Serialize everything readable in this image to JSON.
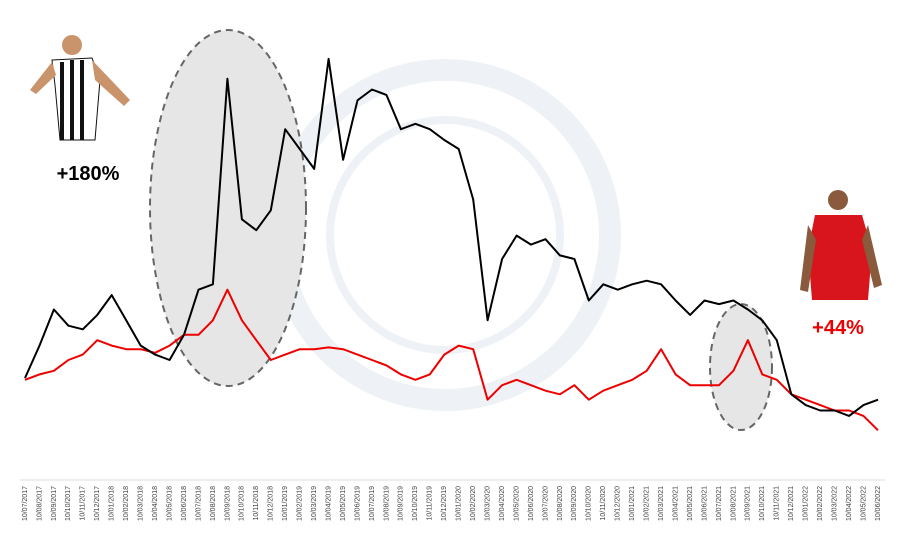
{
  "chart_data": {
    "type": "line",
    "categories": [
      "10/07/2017",
      "10/08/2017",
      "10/09/2017",
      "10/10/2017",
      "10/11/2017",
      "10/12/2017",
      "10/01/2018",
      "10/02/2018",
      "10/03/2018",
      "10/04/2018",
      "10/05/2018",
      "10/06/2018",
      "10/07/2018",
      "10/08/2018",
      "10/09/2018",
      "10/10/2018",
      "10/11/2018",
      "10/12/2018",
      "10/01/2019",
      "10/02/2019",
      "10/03/2019",
      "10/04/2019",
      "10/05/2019",
      "10/06/2019",
      "10/07/2019",
      "10/08/2019",
      "10/09/2019",
      "10/10/2019",
      "10/11/2019",
      "10/12/2019",
      "10/01/2020",
      "10/02/2020",
      "10/03/2020",
      "10/04/2020",
      "10/05/2020",
      "10/06/2020",
      "10/07/2020",
      "10/08/2020",
      "10/09/2020",
      "10/10/2020",
      "10/11/2020",
      "10/12/2020",
      "10/01/2021",
      "10/02/2021",
      "10/03/2021",
      "10/04/2021",
      "10/05/2021",
      "10/06/2021",
      "10/07/2021",
      "10/08/2021",
      "10/09/2021",
      "10/10/2021",
      "10/11/2021",
      "10/12/2021",
      "10/01/2022",
      "10/02/2022",
      "10/03/2022",
      "10/04/2022",
      "10/05/2022",
      "10/06/2022"
    ],
    "series": [
      {
        "color": "#000000",
        "values": [
          100,
          118,
          138,
          129,
          127,
          135,
          146,
          132,
          118,
          113,
          110,
          124,
          149,
          152,
          266,
          188,
          182,
          193,
          238,
          227,
          216,
          277,
          221,
          254,
          260,
          257,
          238,
          241,
          238,
          232,
          227,
          199,
          132,
          166,
          179,
          174,
          177,
          168,
          166,
          143,
          152,
          149,
          152,
          154,
          152,
          143,
          135,
          143,
          141,
          143,
          138,
          132,
          121,
          91,
          85,
          82,
          82,
          79,
          85,
          88
        ]
      },
      {
        "color": "#ee0000",
        "values": [
          99,
          102,
          104,
          110,
          113,
          121,
          118,
          116,
          116,
          114,
          118,
          124,
          124,
          132,
          149,
          132,
          121,
          110,
          113,
          116,
          116,
          117,
          116,
          113,
          110,
          107,
          102,
          99,
          102,
          113,
          118,
          116,
          88,
          96,
          99,
          96,
          93,
          91,
          96,
          88,
          93,
          96,
          99,
          104,
          116,
          102,
          96,
          96,
          96,
          104,
          121,
          102,
          99,
          91,
          88,
          85,
          82,
          82,
          79,
          71
        ]
      }
    ],
    "ylim": [
      49,
      293
    ],
    "annotations": [
      {
        "text": "+180%",
        "color": "#000000"
      },
      {
        "text": "+44%",
        "color": "#ee0000"
      }
    ]
  }
}
